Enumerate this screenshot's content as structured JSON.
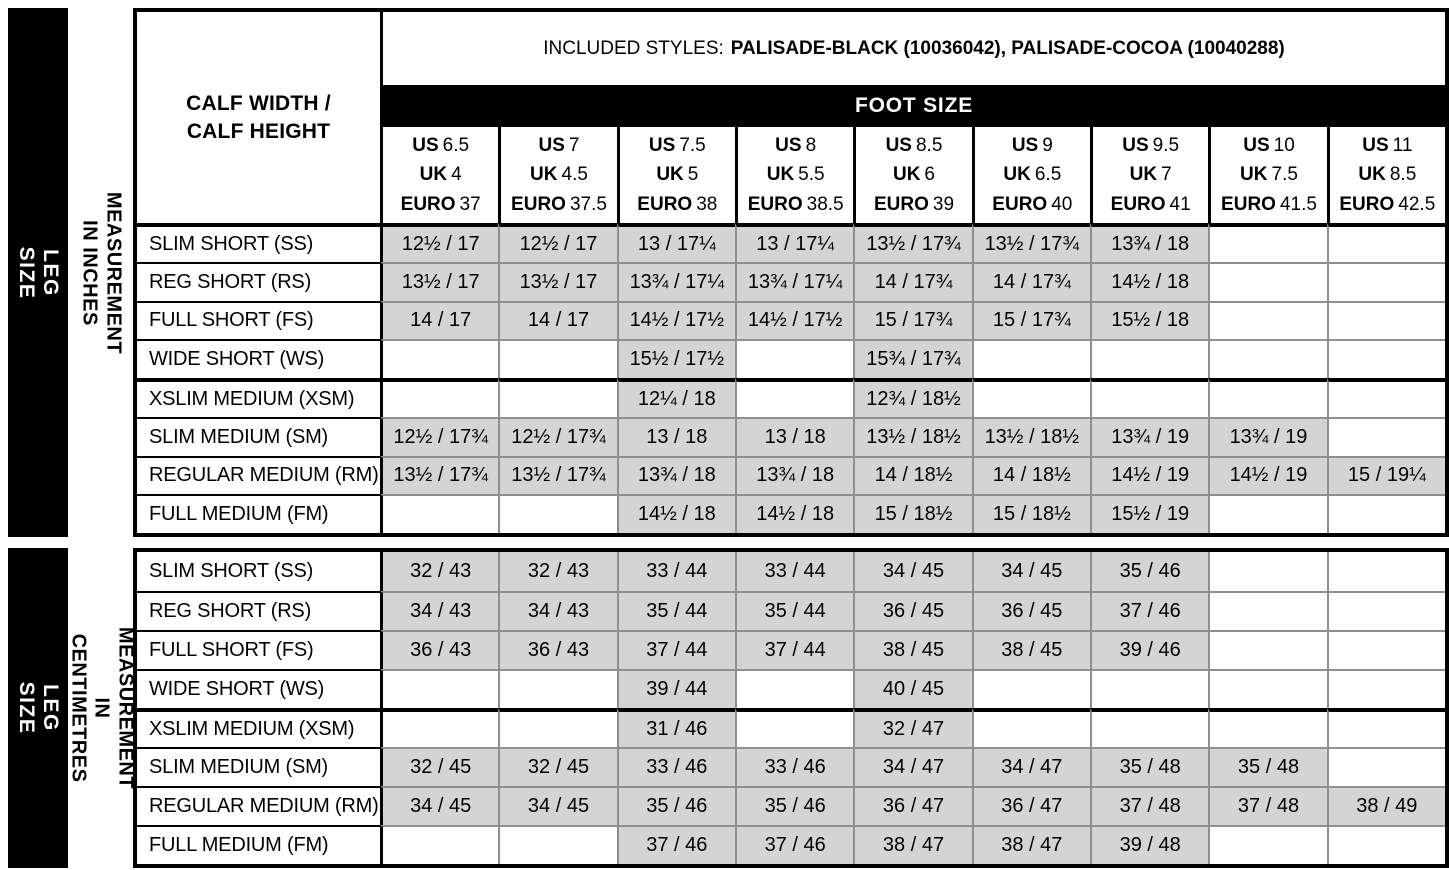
{
  "header": {
    "calf_line1": "CALF WIDTH /",
    "calf_line2": "CALF HEIGHT",
    "included_styles_label": "INCLUDED STYLES:",
    "included_styles_value": "PALISADE-BLACK (10036042), PALISADE-COCOA (10040288)",
    "foot_size_label": "FOOT SIZE",
    "size_prefixes": {
      "us": "US",
      "uk": "UK",
      "euro": "EURO"
    },
    "foot_sizes": [
      {
        "us": "6.5",
        "uk": "4",
        "euro": "37"
      },
      {
        "us": "7",
        "uk": "4.5",
        "euro": "37.5"
      },
      {
        "us": "7.5",
        "uk": "5",
        "euro": "38"
      },
      {
        "us": "8",
        "uk": "5.5",
        "euro": "38.5"
      },
      {
        "us": "8.5",
        "uk": "6",
        "euro": "39"
      },
      {
        "us": "9",
        "uk": "6.5",
        "euro": "40"
      },
      {
        "us": "9.5",
        "uk": "7",
        "euro": "41"
      },
      {
        "us": "10",
        "uk": "7.5",
        "euro": "41.5"
      },
      {
        "us": "11",
        "uk": "8.5",
        "euro": "42.5"
      }
    ]
  },
  "sections": {
    "inches": {
      "leg_size_label": "LEG SIZE",
      "measurement_label": "MEASUREMENT IN INCHES"
    },
    "cm": {
      "leg_size_label": "LEG SIZE",
      "measurement_label": "MEASUREMENT\nIN CENTIMETRES"
    }
  },
  "colors": {
    "black": "#000000",
    "cell_fill_gray": "#d4d4d4",
    "grid_line_gray": "#8f8f8f"
  },
  "chart_data": [
    {
      "type": "table",
      "title": "LEG SIZE — MEASUREMENT IN INCHES",
      "value_format": "calf width / calf height",
      "columns": [
        "US 6.5 / UK 4 / EURO 37",
        "US 7 / UK 4.5 / EURO 37.5",
        "US 7.5 / UK 5 / EURO 38",
        "US 8 / UK 5.5 / EURO 38.5",
        "US 8.5 / UK 6 / EURO 39",
        "US 9 / UK 6.5 / EURO 40",
        "US 9.5 / UK 7 / EURO 41",
        "US 10 / UK 7.5 / EURO 41.5",
        "US 11 / UK 8.5 / EURO 42.5"
      ],
      "row_labels": [
        "SLIM SHORT (SS)",
        "REG SHORT (RS)",
        "FULL SHORT (FS)",
        "WIDE SHORT (WS)",
        "XSLIM MEDIUM (XSM)",
        "SLIM MEDIUM (SM)",
        "REGULAR MEDIUM (RM)",
        "FULL MEDIUM (FM)"
      ],
      "rows": [
        [
          "12½ / 17",
          "12½ / 17",
          "13 / 17¼",
          "13 / 17¼",
          "13½ / 17¾",
          "13½ / 17¾",
          "13¾ / 18",
          "",
          ""
        ],
        [
          "13½ / 17",
          "13½ / 17",
          "13¾ / 17¼",
          "13¾ / 17¼",
          "14 / 17¾",
          "14 / 17¾",
          "14½ / 18",
          "",
          ""
        ],
        [
          "14 / 17",
          "14 / 17",
          "14½ / 17½",
          "14½ / 17½",
          "15 / 17¾",
          "15 / 17¾",
          "15½ / 18",
          "",
          ""
        ],
        [
          "",
          "",
          "15½ / 17½",
          "",
          "15¾ / 17¾",
          "",
          "",
          "",
          ""
        ],
        [
          "",
          "",
          "12¼ / 18",
          "",
          "12¾ / 18½",
          "",
          "",
          "",
          ""
        ],
        [
          "12½ / 17¾",
          "12½ / 17¾",
          "13 / 18",
          "13 / 18",
          "13½ / 18½",
          "13½ / 18½",
          "13¾ / 19",
          "13¾ / 19",
          ""
        ],
        [
          "13½ / 17¾",
          "13½ / 17¾",
          "13¾ / 18",
          "13¾ / 18",
          "14 / 18½",
          "14 / 18½",
          "14½ / 19",
          "14½ / 19",
          "15 / 19¼"
        ],
        [
          "",
          "",
          "14½ / 18",
          "14½ / 18",
          "15 / 18½",
          "15 / 18½",
          "15½ / 19",
          "",
          ""
        ]
      ]
    },
    {
      "type": "table",
      "title": "LEG SIZE — MEASUREMENT IN CENTIMETRES",
      "value_format": "calf width / calf height",
      "columns": [
        "US 6.5 / UK 4 / EURO 37",
        "US 7 / UK 4.5 / EURO 37.5",
        "US 7.5 / UK 5 / EURO 38",
        "US 8 / UK 5.5 / EURO 38.5",
        "US 8.5 / UK 6 / EURO 39",
        "US 9 / UK 6.5 / EURO 40",
        "US 9.5 / UK 7 / EURO 41",
        "US 10 / UK 7.5 / EURO 41.5",
        "US 11 / UK 8.5 / EURO 42.5"
      ],
      "row_labels": [
        "SLIM SHORT (SS)",
        "REG SHORT (RS)",
        "FULL SHORT (FS)",
        "WIDE SHORT (WS)",
        "XSLIM MEDIUM (XSM)",
        "SLIM MEDIUM (SM)",
        "REGULAR MEDIUM (RM)",
        "FULL MEDIUM (FM)"
      ],
      "rows": [
        [
          "32 / 43",
          "32 / 43",
          "33 / 44",
          "33 / 44",
          "34 / 45",
          "34 / 45",
          "35 / 46",
          "",
          ""
        ],
        [
          "34 / 43",
          "34 / 43",
          "35 / 44",
          "35 / 44",
          "36 / 45",
          "36 / 45",
          "37 / 46",
          "",
          ""
        ],
        [
          "36 / 43",
          "36 / 43",
          "37 / 44",
          "37 / 44",
          "38 / 45",
          "38 / 45",
          "39 / 46",
          "",
          ""
        ],
        [
          "",
          "",
          "39 / 44",
          "",
          "40 / 45",
          "",
          "",
          "",
          ""
        ],
        [
          "",
          "",
          "31 / 46",
          "",
          "32 / 47",
          "",
          "",
          "",
          ""
        ],
        [
          "32 / 45",
          "32 / 45",
          "33 / 46",
          "33 / 46",
          "34 / 47",
          "34 / 47",
          "35 / 48",
          "35 / 48",
          ""
        ],
        [
          "34 / 45",
          "34 / 45",
          "35 / 46",
          "35 / 46",
          "36 / 47",
          "36 / 47",
          "37 / 48",
          "37 / 48",
          "38 / 49"
        ],
        [
          "",
          "",
          "37 / 46",
          "37 / 46",
          "38 / 47",
          "38 / 47",
          "39 / 48",
          "",
          ""
        ]
      ]
    }
  ]
}
